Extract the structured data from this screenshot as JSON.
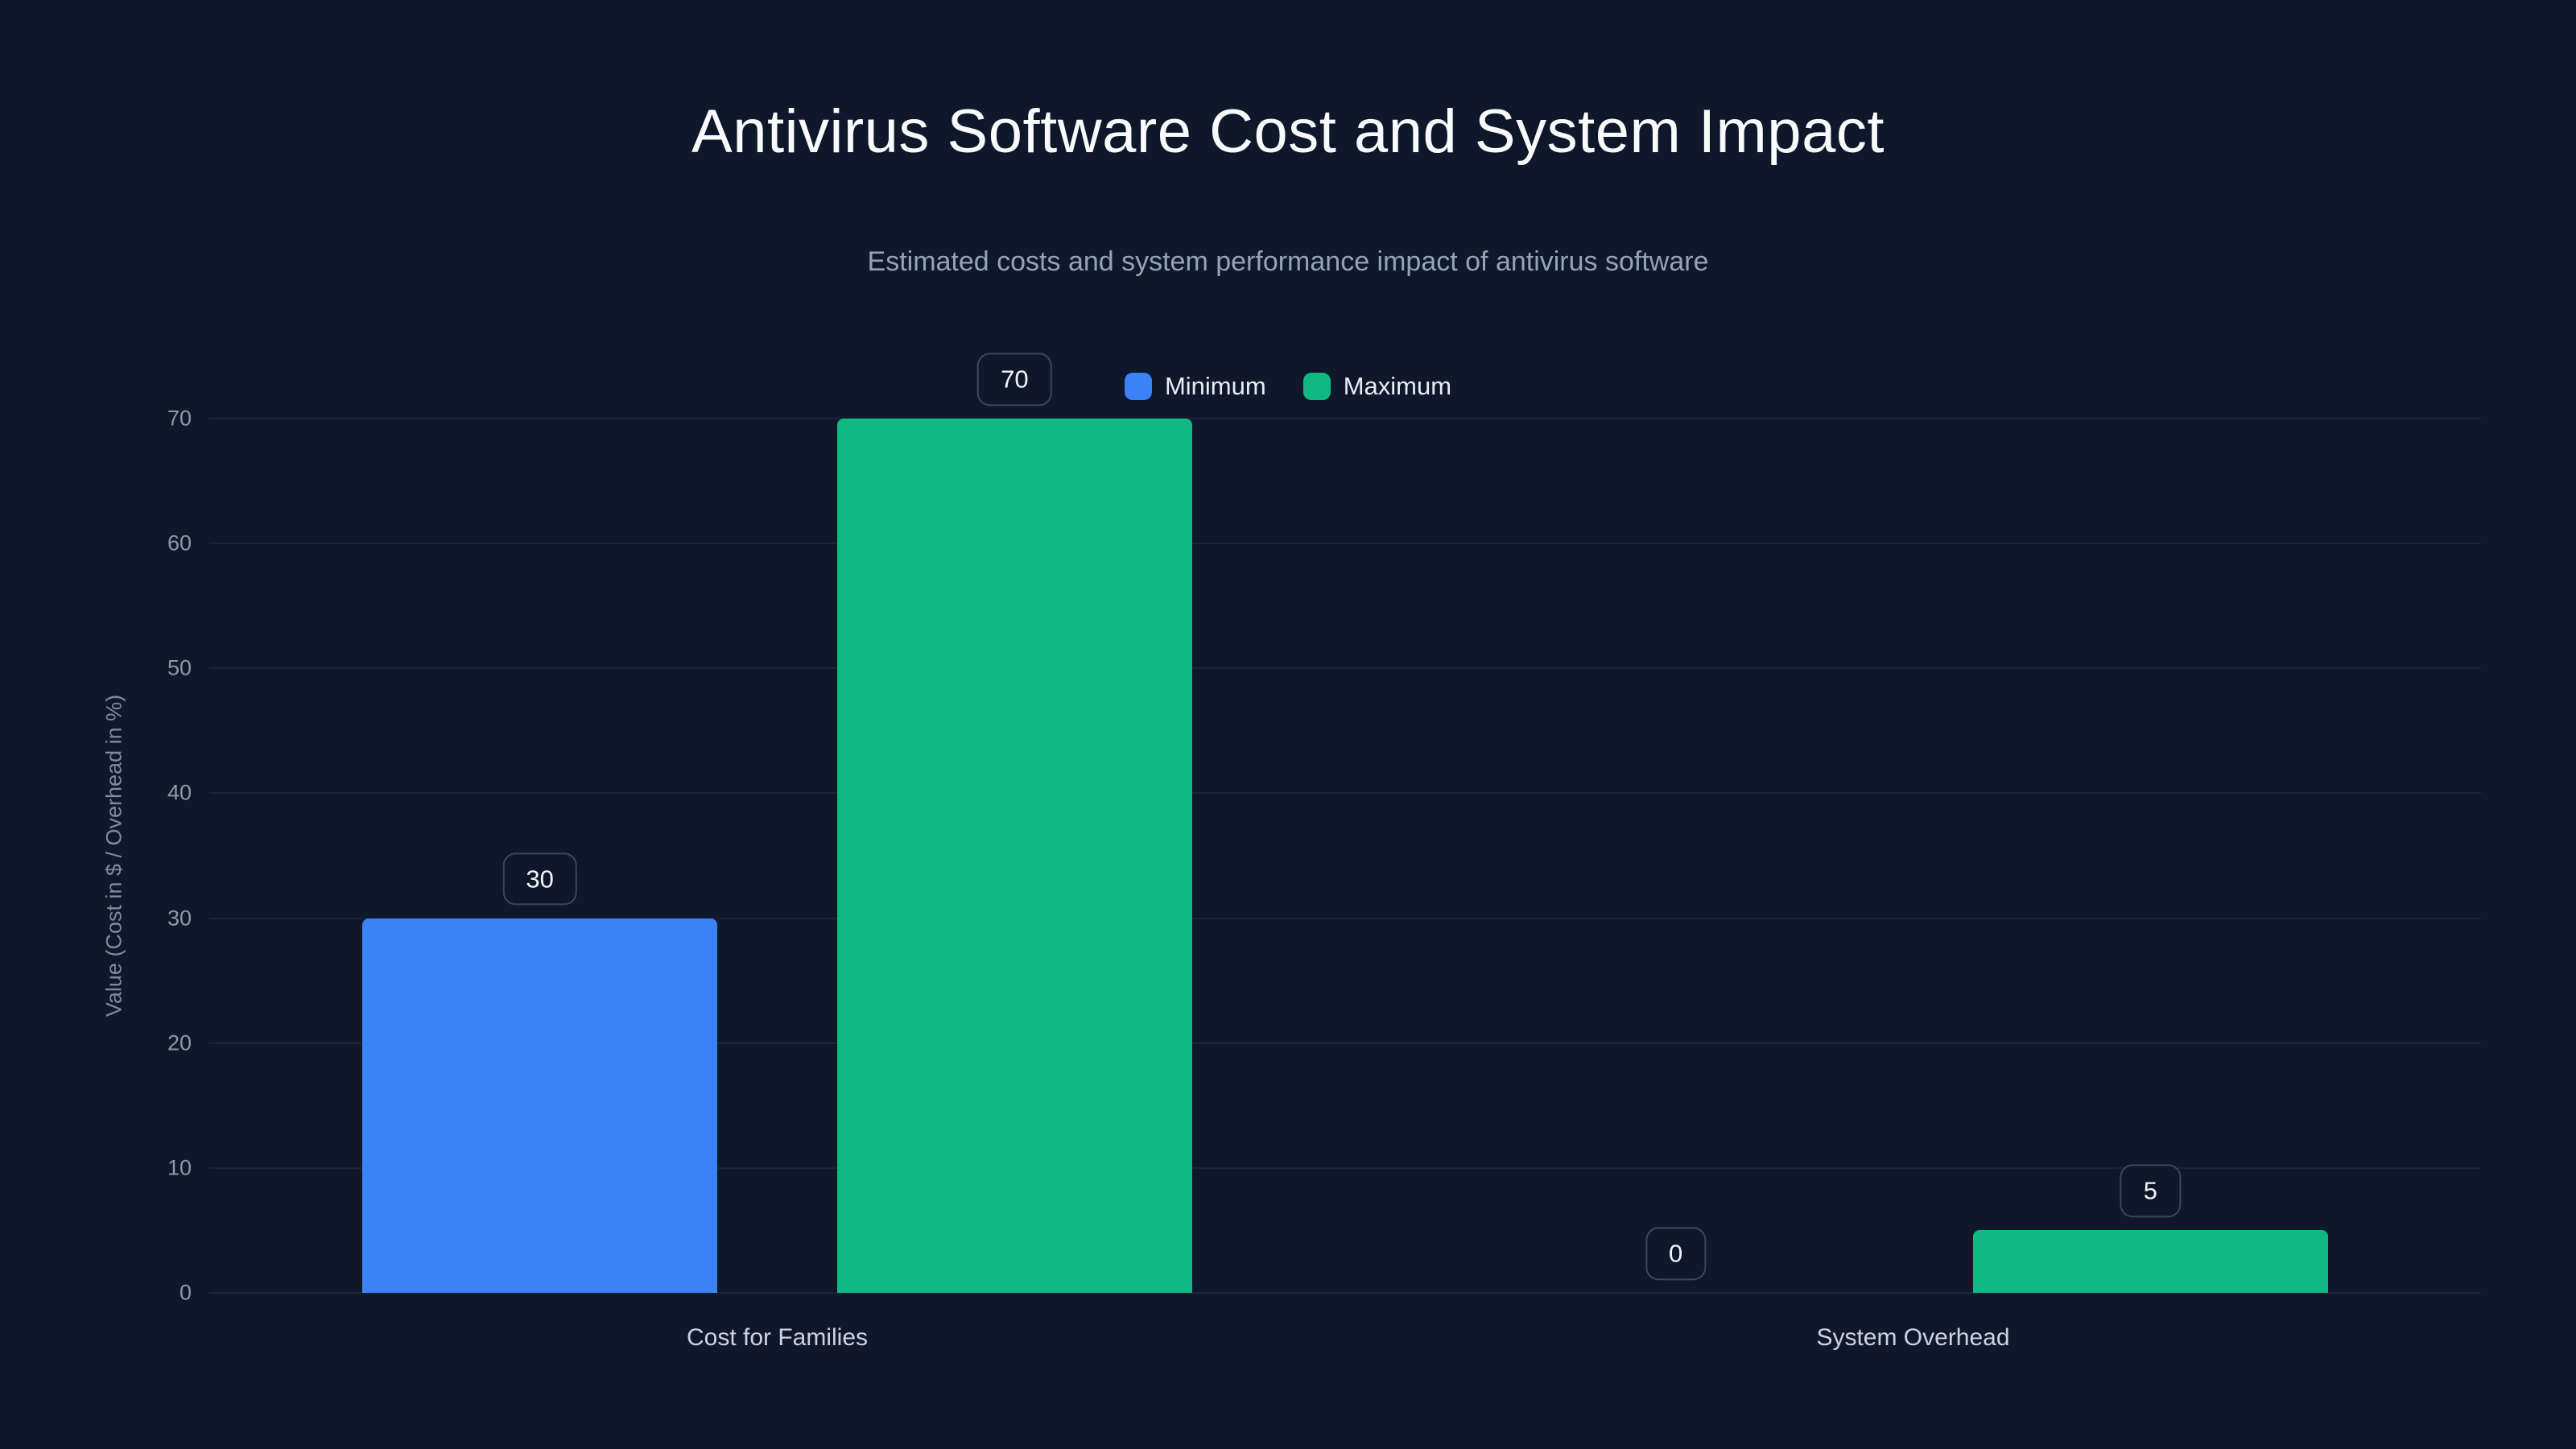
{
  "colors": {
    "background": "#0f172a",
    "title": "#f8fafc",
    "subtitle": "#94a3b8",
    "axis_text": "#8b99ad",
    "label_box_border": "#3c465a",
    "minimum": "#3b82f6",
    "maximum": "#10b981"
  },
  "chart_data": {
    "type": "bar",
    "title": "Antivirus Software Cost and System Impact",
    "subtitle": "Estimated costs and system performance impact of antivirus software",
    "xlabel": "",
    "ylabel": "Value (Cost in $ / Overhead in %)",
    "categories": [
      "Cost for Families",
      "System Overhead"
    ],
    "series": [
      {
        "name": "Minimum",
        "color": "#3b82f6",
        "values": [
          30,
          0
        ]
      },
      {
        "name": "Maximum",
        "color": "#10b981",
        "values": [
          70,
          5
        ]
      }
    ],
    "value_labels": [
      "30",
      "70",
      "0",
      "5"
    ],
    "ylim": [
      0,
      70
    ],
    "yticks": [
      0,
      10,
      20,
      30,
      40,
      50,
      60,
      70
    ],
    "grid": true,
    "legend_position": "top-center"
  }
}
